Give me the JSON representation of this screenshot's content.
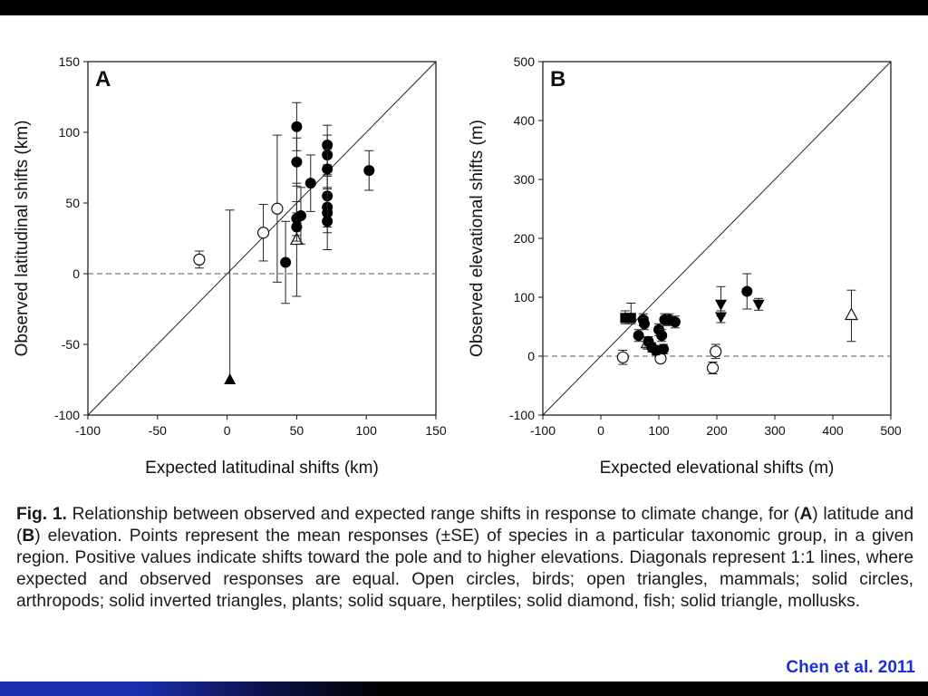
{
  "chart_data": [
    {
      "type": "scatter",
      "panel_label": "A",
      "xlabel": "Expected latitudinal shifts (km)",
      "ylabel": "Observed latitudinal shifts (km)",
      "xlim": [
        -100,
        150
      ],
      "ylim": [
        -100,
        150
      ],
      "xticks": [
        -100,
        -50,
        0,
        50,
        100,
        150
      ],
      "yticks": [
        -100,
        -50,
        0,
        50,
        100,
        150
      ],
      "reference_line": "1:1 diagonal",
      "zero_line": "dashed at y=0",
      "points": [
        {
          "x": -20,
          "y": 10,
          "err_lo": 6,
          "err_hi": 6,
          "marker": "open-circle"
        },
        {
          "x": 26,
          "y": 29,
          "err_lo": 20,
          "err_hi": 20,
          "marker": "open-circle"
        },
        {
          "x": 36,
          "y": 46,
          "err_lo": 52,
          "err_hi": 52,
          "marker": "open-circle"
        },
        {
          "x": 50,
          "y": 24,
          "err_lo": 40,
          "err_hi": 40,
          "marker": "open-triangle"
        },
        {
          "x": 2,
          "y": -75,
          "err_lo": 0,
          "err_hi": 120,
          "marker": "solid-triangle"
        },
        {
          "x": 42,
          "y": 8,
          "err_lo": 29,
          "err_hi": 29,
          "marker": "solid-circle"
        },
        {
          "x": 50,
          "y": 104,
          "err_lo": 17,
          "err_hi": 17,
          "marker": "solid-circle"
        },
        {
          "x": 50,
          "y": 79,
          "err_lo": 17,
          "err_hi": 17,
          "marker": "solid-circle"
        },
        {
          "x": 50,
          "y": 39,
          "err_lo": 12,
          "err_hi": 12,
          "marker": "solid-circle"
        },
        {
          "x": 50,
          "y": 33,
          "err_lo": 10,
          "err_hi": 10,
          "marker": "solid-circle"
        },
        {
          "x": 53,
          "y": 41,
          "err_lo": 20,
          "err_hi": 20,
          "marker": "solid-circle"
        },
        {
          "x": 60,
          "y": 64,
          "err_lo": 20,
          "err_hi": 20,
          "marker": "solid-circle"
        },
        {
          "x": 72,
          "y": 91,
          "err_lo": 14,
          "err_hi": 14,
          "marker": "solid-circle"
        },
        {
          "x": 72,
          "y": 84,
          "err_lo": 14,
          "err_hi": 14,
          "marker": "solid-circle"
        },
        {
          "x": 72,
          "y": 74,
          "err_lo": 14,
          "err_hi": 14,
          "marker": "solid-circle"
        },
        {
          "x": 72,
          "y": 55,
          "err_lo": 14,
          "err_hi": 14,
          "marker": "solid-circle"
        },
        {
          "x": 72,
          "y": 47,
          "err_lo": 14,
          "err_hi": 14,
          "marker": "solid-circle"
        },
        {
          "x": 72,
          "y": 43,
          "err_lo": 14,
          "err_hi": 14,
          "marker": "solid-circle"
        },
        {
          "x": 72,
          "y": 37,
          "err_lo": 20,
          "err_hi": 20,
          "marker": "solid-circle"
        },
        {
          "x": 102,
          "y": 73,
          "err_lo": 14,
          "err_hi": 14,
          "marker": "solid-circle"
        }
      ]
    },
    {
      "type": "scatter",
      "panel_label": "B",
      "xlabel": "Expected elevational shifts (m)",
      "ylabel": "Observed elevational shifts (m)",
      "xlim": [
        -100,
        500
      ],
      "ylim": [
        -100,
        500
      ],
      "xticks": [
        -100,
        0,
        100,
        200,
        300,
        400,
        500
      ],
      "yticks": [
        -100,
        0,
        100,
        200,
        300,
        400,
        500
      ],
      "reference_line": "1:1 diagonal",
      "zero_line": "dashed at y=0",
      "points": [
        {
          "x": 38,
          "y": -2,
          "err_lo": 12,
          "err_hi": 12,
          "marker": "open-circle"
        },
        {
          "x": 103,
          "y": -4,
          "err_lo": 6,
          "err_hi": 6,
          "marker": "open-circle"
        },
        {
          "x": 193,
          "y": -20,
          "err_lo": 10,
          "err_hi": 10,
          "marker": "open-circle"
        },
        {
          "x": 198,
          "y": 8,
          "err_lo": 12,
          "err_hi": 12,
          "marker": "open-circle"
        },
        {
          "x": 80,
          "y": 22,
          "err_lo": 10,
          "err_hi": 10,
          "marker": "open-triangle"
        },
        {
          "x": 432,
          "y": 70,
          "err_lo": 45,
          "err_hi": 42,
          "marker": "open-triangle"
        },
        {
          "x": 42,
          "y": 65,
          "err_lo": 10,
          "err_hi": 12,
          "marker": "solid-square"
        },
        {
          "x": 52,
          "y": 65,
          "err_lo": 10,
          "err_hi": 25,
          "marker": "solid-square"
        },
        {
          "x": 65,
          "y": 35,
          "err_lo": 10,
          "err_hi": 10,
          "marker": "solid-circle"
        },
        {
          "x": 73,
          "y": 62,
          "err_lo": 10,
          "err_hi": 10,
          "marker": "solid-circle"
        },
        {
          "x": 75,
          "y": 55,
          "err_lo": 10,
          "err_hi": 10,
          "marker": "solid-circle"
        },
        {
          "x": 82,
          "y": 25,
          "err_lo": 8,
          "err_hi": 8,
          "marker": "solid-circle"
        },
        {
          "x": 88,
          "y": 15,
          "err_lo": 8,
          "err_hi": 8,
          "marker": "solid-circle"
        },
        {
          "x": 95,
          "y": 10,
          "err_lo": 8,
          "err_hi": 8,
          "marker": "solid-circle"
        },
        {
          "x": 100,
          "y": 45,
          "err_lo": 10,
          "err_hi": 10,
          "marker": "solid-circle"
        },
        {
          "x": 105,
          "y": 35,
          "err_lo": 10,
          "err_hi": 10,
          "marker": "solid-circle"
        },
        {
          "x": 108,
          "y": 12,
          "err_lo": 8,
          "err_hi": 8,
          "marker": "solid-circle"
        },
        {
          "x": 110,
          "y": 62,
          "err_lo": 10,
          "err_hi": 10,
          "marker": "solid-circle"
        },
        {
          "x": 118,
          "y": 62,
          "err_lo": 10,
          "err_hi": 10,
          "marker": "solid-circle"
        },
        {
          "x": 128,
          "y": 58,
          "err_lo": 10,
          "err_hi": 10,
          "marker": "solid-circle"
        },
        {
          "x": 252,
          "y": 110,
          "err_lo": 30,
          "err_hi": 30,
          "marker": "solid-circle"
        },
        {
          "x": 207,
          "y": 88,
          "err_lo": 20,
          "err_hi": 30,
          "marker": "solid-inverted-triangle"
        },
        {
          "x": 207,
          "y": 67,
          "err_lo": 10,
          "err_hi": 10,
          "marker": "solid-inverted-triangle"
        },
        {
          "x": 272,
          "y": 88,
          "err_lo": 10,
          "err_hi": 10,
          "marker": "solid-inverted-triangle"
        }
      ]
    }
  ],
  "caption": {
    "fig_label": "Fig. 1.",
    "text_html": "Relationship between observed and expected range shifts in response to climate change, for (<b>A</b>) latitude and (<b>B</b>) elevation. Points represent the mean responses (±SE) of species in a particular taxonomic group, in a given region. Positive values indicate shifts toward the pole and to higher elevations. Diagonals represent 1:1 lines, where expected and observed responses are equal. Open circles, birds; open triangles, mammals; solid circles, arthropods; solid inverted triangles, plants; solid square, herptiles; solid diamond, fish; solid triangle, mollusks."
  },
  "credit": "Chen et al. 2011"
}
